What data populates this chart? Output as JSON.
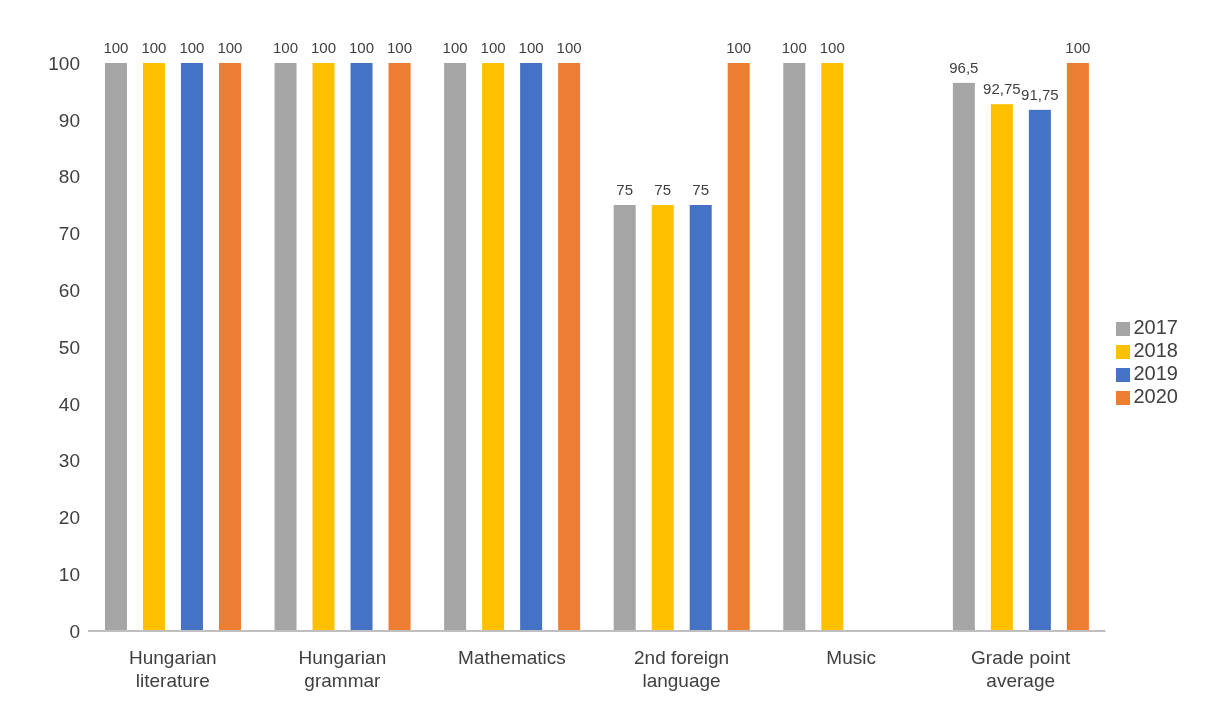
{
  "chart_data": {
    "type": "bar",
    "categories": [
      "Hungarian literature",
      "Hungarian grammar",
      "Mathematics",
      "2nd foreign language",
      "Music",
      "Grade point average"
    ],
    "series": [
      {
        "name": "2017",
        "color": "#a5a5a5",
        "values": [
          100,
          100,
          100,
          75,
          100,
          96.5
        ],
        "value_labels": [
          "100",
          "100",
          "100",
          "75",
          "100",
          "96,5"
        ]
      },
      {
        "name": "2018",
        "color": "#ffc000",
        "values": [
          100,
          100,
          100,
          75,
          100,
          92.75
        ],
        "value_labels": [
          "100",
          "100",
          "100",
          "75",
          "100",
          "92,75"
        ]
      },
      {
        "name": "2019",
        "color": "#4472c4",
        "values": [
          100,
          100,
          100,
          75,
          0,
          91.75
        ],
        "value_labels": [
          "100",
          "100",
          "100",
          "75",
          null,
          "91,75"
        ]
      },
      {
        "name": "2020",
        "color": "#ed7d31",
        "values": [
          100,
          100,
          100,
          100,
          0,
          100
        ],
        "value_labels": [
          "100",
          "100",
          "100",
          "100",
          null,
          "100"
        ]
      }
    ],
    "ylim": [
      0,
      100
    ],
    "yticks": [
      0,
      10,
      20,
      30,
      40,
      50,
      60,
      70,
      80,
      90,
      100
    ],
    "grid": false,
    "legend": "right"
  }
}
